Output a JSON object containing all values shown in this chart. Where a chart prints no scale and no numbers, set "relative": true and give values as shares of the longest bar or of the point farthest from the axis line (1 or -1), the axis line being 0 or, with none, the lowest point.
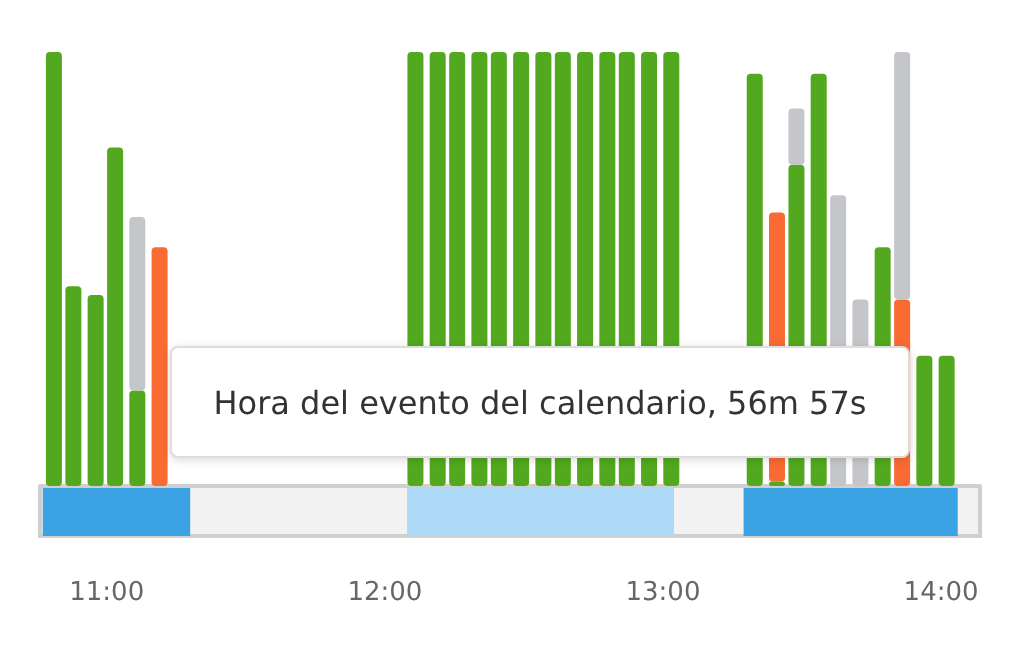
{
  "chart_data": [
    {
      "type": "bar",
      "stacked": true,
      "relative": true,
      "grid": false,
      "x": [
        10.81,
        10.88,
        10.96,
        11.03,
        11.11,
        11.19,
        12.11,
        12.19,
        12.26,
        12.34,
        12.41,
        12.49,
        12.57,
        12.64,
        12.72,
        12.8,
        12.87,
        12.95,
        13.03,
        13.33,
        13.41,
        13.48,
        13.56,
        13.63,
        13.71,
        13.79,
        13.86,
        13.94,
        14.02
      ],
      "xlim": [
        10.76,
        14.14
      ],
      "series": [
        {
          "color": "#52a81e",
          "values": [
            1,
            0.46,
            0.44,
            0.78,
            0.22,
            null,
            1,
            1,
            1,
            1,
            1,
            1,
            1,
            1,
            1,
            1,
            1,
            1,
            1,
            0.95,
            0.01,
            0.74,
            0.95,
            null,
            null,
            0.55,
            null,
            0.3,
            0.3
          ]
        },
        {
          "color": "#fa6a33",
          "values": [
            null,
            null,
            null,
            null,
            null,
            0.55,
            null,
            null,
            null,
            null,
            null,
            null,
            null,
            null,
            null,
            null,
            null,
            null,
            null,
            null,
            0.62,
            null,
            null,
            null,
            null,
            null,
            0.43,
            null,
            null
          ]
        },
        {
          "color": "#c4c6c9",
          "values": [
            null,
            null,
            null,
            null,
            0.4,
            null,
            null,
            null,
            null,
            null,
            null,
            null,
            null,
            null,
            null,
            null,
            null,
            null,
            null,
            null,
            null,
            0.13,
            null,
            0.67,
            0.43,
            null,
            0.57,
            null,
            null
          ]
        }
      ]
    },
    {
      "type": "bar",
      "orientation": "horizontal",
      "grid": false,
      "categories": [
        null
      ],
      "xlim": [
        10.76,
        14.14
      ],
      "xticks": [
        {
          "value": 11,
          "label": "11:00"
        },
        {
          "value": 12,
          "label": "12:00"
        },
        {
          "value": 13,
          "label": "13:00"
        },
        {
          "value": 14,
          "label": "14:00"
        }
      ],
      "series": [
        {
          "color": "#3ba3e3",
          "base": [
            10.77
          ],
          "values": [
            0.53
          ]
        },
        {
          "color": "#acdaf7",
          "base": [
            12.08
          ],
          "values": [
            0.96
          ]
        },
        {
          "color": "#3ba3e3",
          "base": [
            13.29
          ],
          "values": [
            0.77
          ]
        }
      ],
      "annotations": [
        "Hora del evento del calendario, 56m 57s"
      ]
    }
  ]
}
